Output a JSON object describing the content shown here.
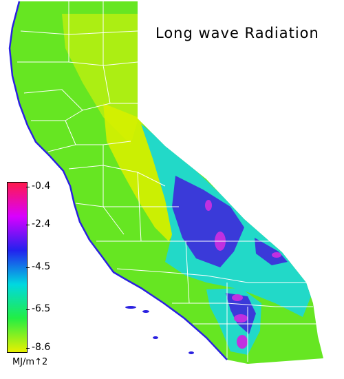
{
  "title": "Long wave Radiation",
  "legend": {
    "ticks": [
      "-0.4",
      "-2.4",
      "-4.5",
      "-6.5",
      "-8.6"
    ],
    "tick_values": [
      -0.4,
      -2.4,
      -4.5,
      -6.5,
      -8.6
    ],
    "unit": "MJ/m↑2",
    "colors": [
      "#ff1a4d",
      "#d900ff",
      "#2222ee",
      "#00d8e0",
      "#22ee44",
      "#e8f000"
    ]
  },
  "map_colors": {
    "land": "#66e622",
    "north_interior": "#b8ee10",
    "central_valley": "#d6f000",
    "sierra_cyan": "#22d9c8",
    "sierra_blue": "#3a3ad9",
    "high_peaks": "#c030e0",
    "coast_edge": "#2a20e0",
    "borders": "#ffffff"
  }
}
